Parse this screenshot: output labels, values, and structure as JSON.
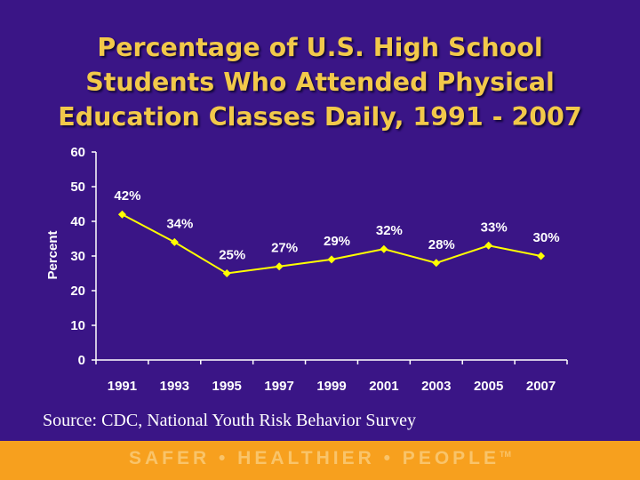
{
  "title": {
    "line1": "Percentage of U.S. High School",
    "line2": "Students Who Attended Physical",
    "line3": "Education Classes Daily, 1991 - 2007"
  },
  "chart_data": {
    "type": "line",
    "categories": [
      "1991",
      "1993",
      "1995",
      "1997",
      "1999",
      "2001",
      "2003",
      "2005",
      "2007"
    ],
    "values": [
      42,
      34,
      25,
      27,
      29,
      32,
      28,
      33,
      30
    ],
    "data_labels": [
      "42%",
      "34%",
      "25%",
      "27%",
      "29%",
      "32%",
      "28%",
      "33%",
      "30%"
    ],
    "ylabel": "Percent",
    "xlabel": "",
    "ylim": [
      0,
      60
    ],
    "yticks": [
      0,
      10,
      20,
      30,
      40,
      50,
      60
    ],
    "grid": false,
    "legend": "none",
    "series_color": "#ffff00"
  },
  "source": "Source: CDC, National Youth Risk Behavior Survey",
  "footer": {
    "tagline": "SAFER • HEALTHIER • PEOPLE",
    "trademark": "TM"
  },
  "colors": {
    "background": "#3a1586",
    "title": "#f2c94a",
    "footer": "#f7a01e",
    "axis": "#ffffff"
  }
}
